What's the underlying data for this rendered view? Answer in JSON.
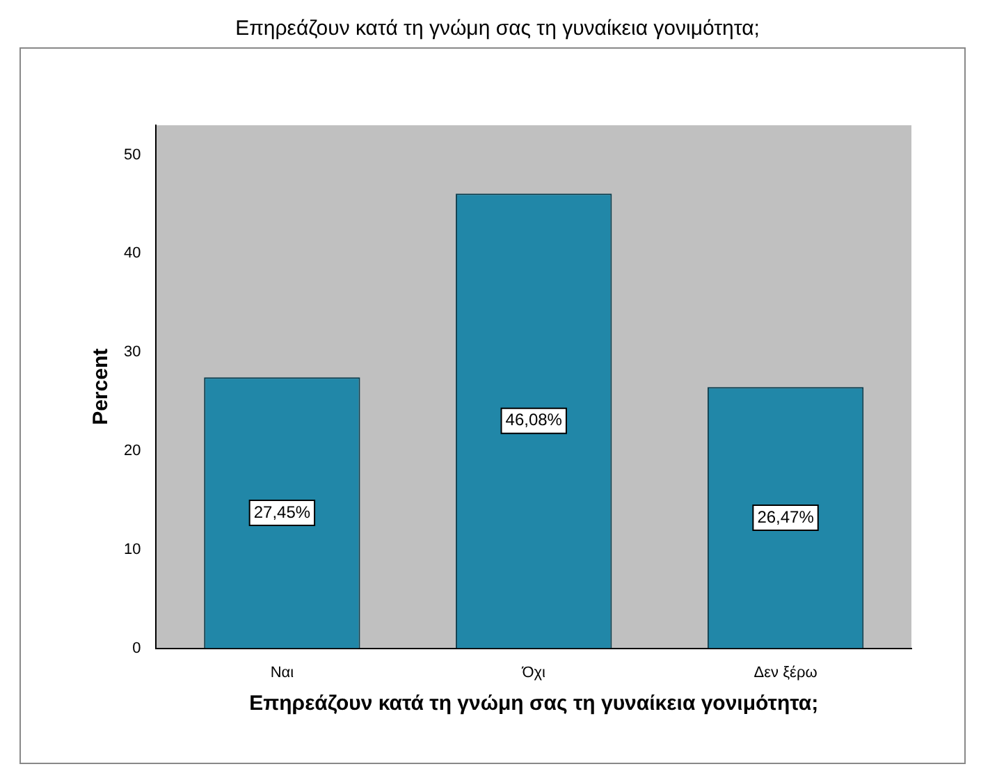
{
  "chart_data": {
    "type": "bar",
    "title": "Επηρεάζουν κατά τη γνώμη σας τη γυναίκεια γονιμότητα;",
    "xlabel": "Επηρεάζουν κατά τη γνώμη σας τη γυναίκεια γονιμότητα;",
    "ylabel": "Percent",
    "categories": [
      "Ναι",
      "Όχι",
      "Δεν ξέρω"
    ],
    "values": [
      27.45,
      46.08,
      26.47
    ],
    "value_labels": [
      "27,45%",
      "46,08%",
      "26,47%"
    ],
    "color": "#2187a8",
    "ylim": [
      0,
      53
    ],
    "yticks": [
      0,
      10,
      20,
      30,
      40,
      50
    ],
    "grid": false,
    "legend": false
  }
}
